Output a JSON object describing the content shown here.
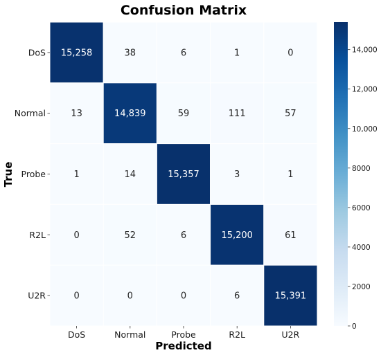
{
  "chart_data": {
    "type": "heatmap",
    "title": "Confusion Matrix",
    "xlabel": "Predicted",
    "ylabel": "True",
    "x_categories": [
      "DoS",
      "Normal",
      "Probe",
      "R2L",
      "U2R"
    ],
    "y_categories": [
      "DoS",
      "Normal",
      "Probe",
      "R2L",
      "U2R"
    ],
    "values": [
      [
        15258,
        38,
        6,
        1,
        0
      ],
      [
        13,
        14839,
        59,
        111,
        57
      ],
      [
        1,
        14,
        15357,
        3,
        1
      ],
      [
        0,
        52,
        6,
        15200,
        61
      ],
      [
        0,
        0,
        0,
        6,
        15391
      ]
    ],
    "cell_labels": [
      [
        "15,258",
        "38",
        "6",
        "1",
        "0"
      ],
      [
        "13",
        "14,839",
        "59",
        "111",
        "57"
      ],
      [
        "1",
        "14",
        "15,357",
        "3",
        "1"
      ],
      [
        "0",
        "52",
        "6",
        "15,200",
        "61"
      ],
      [
        "0",
        "0",
        "0",
        "6",
        "15,391"
      ]
    ],
    "colorbar": {
      "range": [
        0,
        15391
      ],
      "ticks": [
        0,
        2000,
        4000,
        6000,
        8000,
        10000,
        12000,
        14000
      ],
      "tick_labels": [
        "0",
        "2000",
        "4000",
        "6000",
        "8000",
        "10,000",
        "12,000",
        "14,000"
      ]
    },
    "colormap": "Blues",
    "colors": {
      "low": "#f7fbff",
      "high": "#08306b",
      "cell_border": "#ffffff"
    }
  }
}
